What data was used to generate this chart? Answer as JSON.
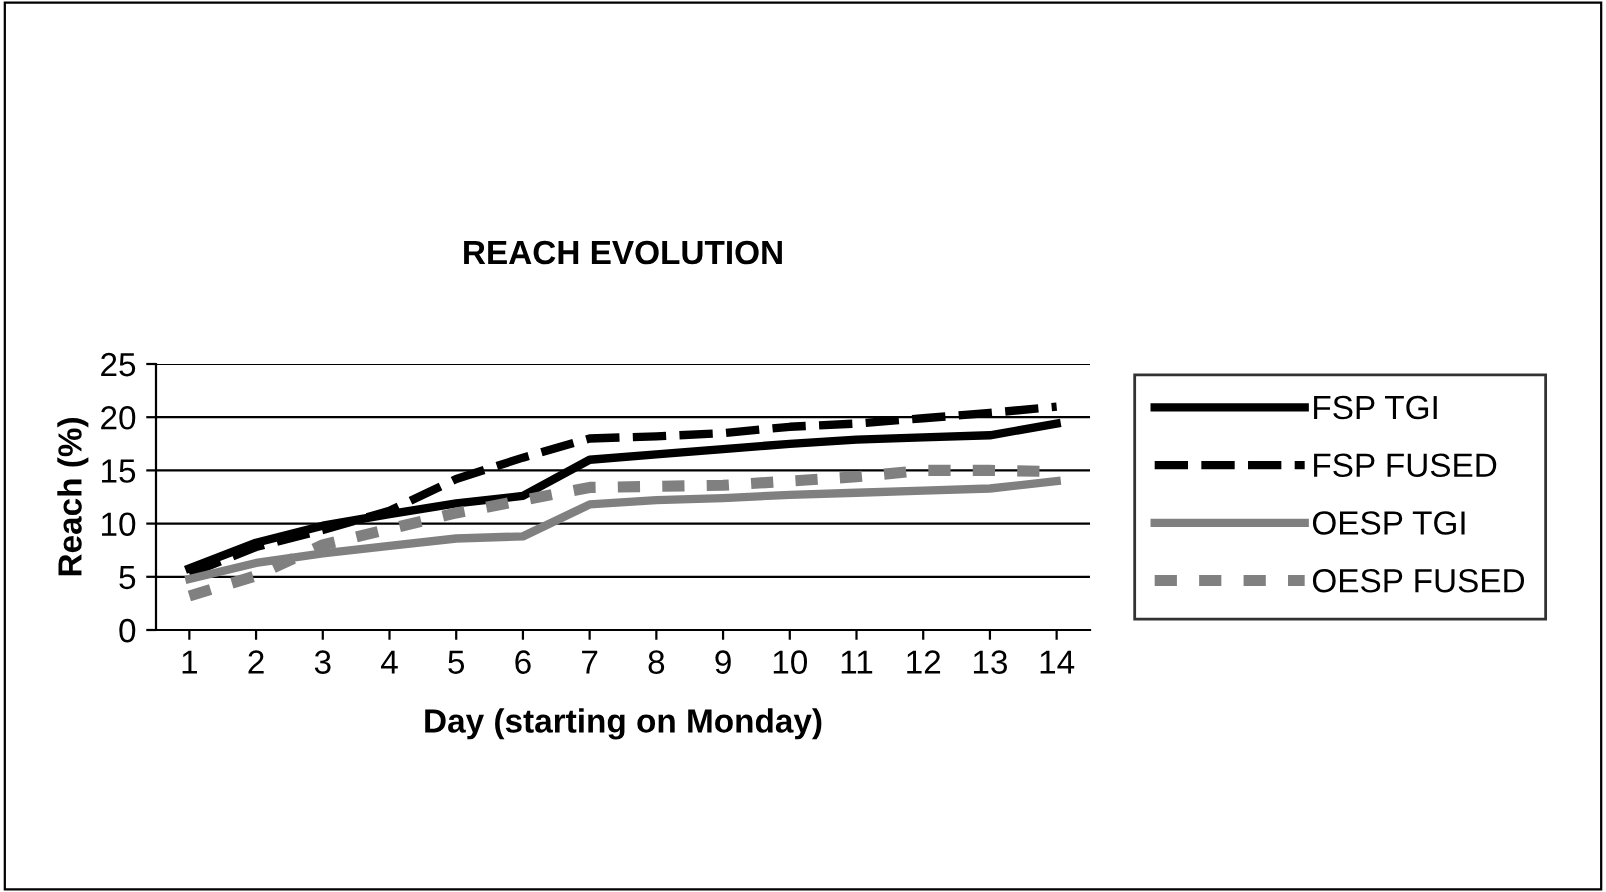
{
  "chart_data": {
    "type": "line",
    "title": "REACH EVOLUTION",
    "xlabel": "Day (starting on Monday)",
    "ylabel": "Reach (%)",
    "categories": [
      "1",
      "2",
      "3",
      "4",
      "5",
      "6",
      "7",
      "8",
      "9",
      "10",
      "11",
      "12",
      "13",
      "14"
    ],
    "series": [
      {
        "name": "FSP TGI",
        "color": "#000000",
        "line_style": "solid",
        "values": [
          5.8,
          8.2,
          9.8,
          10.9,
          11.9,
          12.6,
          16,
          16.5,
          17,
          17.5,
          17.9,
          18.1,
          18.3,
          19.4
        ]
      },
      {
        "name": "FSP FUSED",
        "color": "#000000",
        "line_style": "dashed",
        "values": [
          5.3,
          7.8,
          9.4,
          11.2,
          14.2,
          16.2,
          18,
          18.2,
          18.5,
          19.1,
          19.4,
          19.9,
          20.4,
          21
        ]
      },
      {
        "name": "OESP TGI",
        "color": "#808080",
        "line_style": "solid",
        "values": [
          4.8,
          6.3,
          7.2,
          7.9,
          8.6,
          8.8,
          11.8,
          12.2,
          12.4,
          12.7,
          12.9,
          13.1,
          13.3,
          14
        ]
      },
      {
        "name": "OESP FUSED",
        "color": "#808080",
        "line_style": "dotted",
        "values": [
          3.2,
          5.1,
          8,
          9.5,
          11,
          12.2,
          13.4,
          13.5,
          13.6,
          14,
          14.4,
          15,
          15,
          14.9
        ]
      }
    ],
    "ylim": [
      0,
      25
    ],
    "yticks": [
      0,
      5,
      10,
      15,
      20,
      25
    ],
    "grid": "y",
    "legend": "right",
    "marker": "none"
  }
}
